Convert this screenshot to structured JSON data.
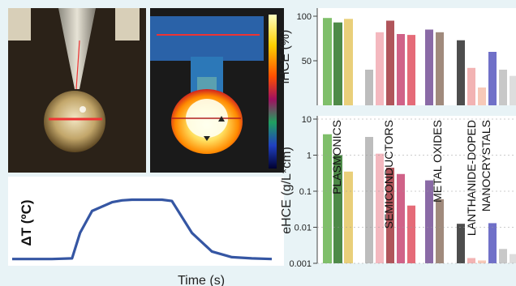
{
  "colors": {
    "background": "#e8f3f6",
    "curve": "#3556a3",
    "plasmonics": [
      "#7fbf6a",
      "#4e8a48",
      "#e9cf7a"
    ],
    "semiconductors": [
      "#bdbdbd",
      "#f4b8bf",
      "#b0555b",
      "#d06288",
      "#e56b78"
    ],
    "metal_oxides": [
      "#8a6aa6",
      "#a08a7c"
    ],
    "lanthanide": [
      "#4d4d4d",
      "#f2b3b3",
      "#f7c9b8",
      "#7070c8",
      "#c8c8c8",
      "#dddddd"
    ]
  },
  "photos": {
    "droplet": {
      "description_icon": "droplet-photo"
    },
    "thermal": {
      "description_icon": "thermal-camera-photo"
    }
  },
  "chart_data": [
    {
      "type": "line",
      "xlabel": "Time (s)",
      "ylabel": "ΔT (ºC)",
      "x": [
        0,
        1,
        2,
        3,
        3.4,
        4,
        5,
        5.5,
        6,
        7,
        7.5,
        8,
        9,
        10,
        11,
        12,
        13
      ],
      "y": [
        0.03,
        0.03,
        0.03,
        0.04,
        0.45,
        0.8,
        0.94,
        0.97,
        0.98,
        0.98,
        0.98,
        0.96,
        0.45,
        0.15,
        0.06,
        0.04,
        0.03
      ],
      "grid": false
    },
    {
      "type": "bar",
      "ylabel": "iHCE (%)",
      "ylim": [
        0,
        100
      ],
      "yticks": [
        "100",
        "50"
      ],
      "series": [
        {
          "group": "PLASMONICS",
          "values": [
            98,
            93,
            97
          ]
        },
        {
          "group": "SEMICONDUCTORS",
          "values": [
            40,
            82,
            95,
            80,
            79
          ]
        },
        {
          "group": "METAL OXIDES",
          "values": [
            85,
            82
          ]
        },
        {
          "group": "LANTHANIDE-DOPED NANOCRYSTALS",
          "values": [
            73,
            42,
            20,
            60,
            40,
            33
          ]
        }
      ]
    },
    {
      "type": "bar",
      "ylabel": "eHCE (g/L*cm)",
      "yscale": "log",
      "ylim": [
        0.001,
        10
      ],
      "yticks": [
        "10",
        "1",
        "0.1",
        "0.01",
        "0.001"
      ],
      "group_labels": [
        "PLASMONICS",
        "SEMICONDUCTORS",
        "METAL OXIDES",
        "LANTHANIDE-DOPED NANOCRYSTALS"
      ],
      "series": [
        {
          "group": "PLASMONICS",
          "values": [
            3.8,
            1.0,
            0.35
          ]
        },
        {
          "group": "SEMICONDUCTORS",
          "values": [
            3.2,
            1.1,
            0.45,
            0.3,
            0.04
          ]
        },
        {
          "group": "METAL OXIDES",
          "values": [
            0.2,
            0.06
          ]
        },
        {
          "group": "LANTHANIDE-DOPED NANOCRYSTALS",
          "values": [
            0.0125,
            0.0014,
            0.0012,
            0.013,
            0.0025,
            0.0018
          ]
        }
      ]
    }
  ]
}
